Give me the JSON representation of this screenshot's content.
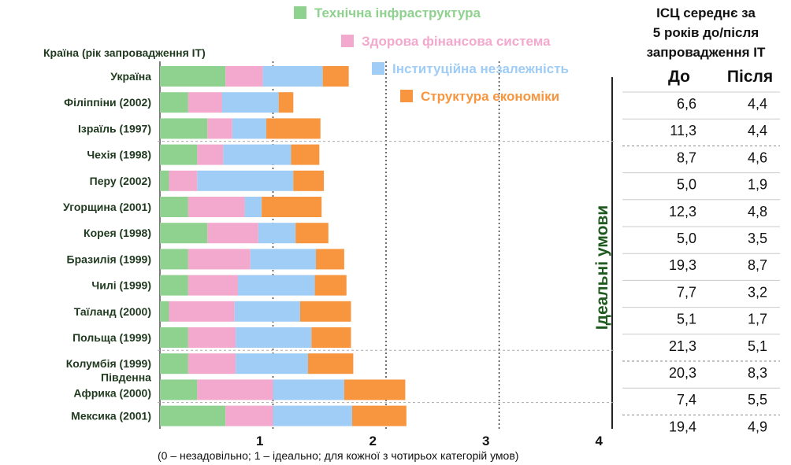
{
  "chart_data": {
    "type": "bar",
    "orientation": "horizontal",
    "stacked": true,
    "ylabel": "Країна (рік запровадження ІТ)",
    "xlabel": "(0 – незадовільно; 1 – ідеально; для кожної з чотирьох категорій умов)",
    "xlim": [
      0,
      4
    ],
    "xticks": [
      "1",
      "2",
      "3",
      "4"
    ],
    "grid": "dotted vertical lines at 1, 2, 3; solid line at 4",
    "legend_position": "top",
    "categories": [
      "Україна",
      "Філіппіни (2002)",
      "Ізраїль (1997)",
      "Чехія (1998)",
      "Перу (2002)",
      "Угорщина (2001)",
      "Корея (1998)",
      "Бразилія (1999)",
      "Чилі (1999)",
      "Таїланд (2000)",
      "Польща (1999)",
      "Колумбія (1999)",
      "Південна Африка (2000)",
      "Мексика (2001)"
    ],
    "series": [
      {
        "name": "Технічна інфраструктура",
        "color": "#8fd18f",
        "values": [
          0.58,
          0.25,
          0.42,
          0.33,
          0.08,
          0.25,
          0.42,
          0.25,
          0.25,
          0.08,
          0.25,
          0.25,
          0.33,
          0.58
        ]
      },
      {
        "name": "Здорова фінансова система",
        "color": "#f3a8cd",
        "values": [
          0.33,
          0.3,
          0.22,
          0.23,
          0.25,
          0.5,
          0.45,
          0.55,
          0.44,
          0.58,
          0.42,
          0.42,
          0.67,
          0.42
        ]
      },
      {
        "name": "Інституційна незалежність",
        "color": "#9fcdf5",
        "values": [
          0.53,
          0.5,
          0.3,
          0.6,
          0.85,
          0.15,
          0.33,
          0.58,
          0.68,
          0.58,
          0.67,
          0.64,
          0.63,
          0.7
        ]
      },
      {
        "name": "Структура економіки",
        "color": "#f7963f",
        "values": [
          0.23,
          0.13,
          0.48,
          0.25,
          0.27,
          0.53,
          0.29,
          0.25,
          0.28,
          0.45,
          0.35,
          0.4,
          0.54,
          0.48
        ]
      }
    ],
    "annotation": "Ідеальні умови"
  },
  "table": {
    "title_lines": [
      "ІСЦ середнє за",
      "5 років до/після",
      "запровадження ІТ"
    ],
    "col_before": "До",
    "col_after": "Після",
    "rows": [
      {
        "before": "6,6",
        "after": "4,4"
      },
      {
        "before": "11,3",
        "after": "4,4"
      },
      {
        "before": "8,7",
        "after": "4,6"
      },
      {
        "before": "5,0",
        "after": "1,9"
      },
      {
        "before": "12,3",
        "after": "4,8"
      },
      {
        "before": "5,0",
        "after": "3,5"
      },
      {
        "before": "19,3",
        "after": "8,7"
      },
      {
        "before": "7,7",
        "after": "3,2"
      },
      {
        "before": "5,1",
        "after": "1,7"
      },
      {
        "before": "21,3",
        "after": "5,1"
      },
      {
        "before": "20,3",
        "after": "8,3"
      },
      {
        "before": "7,4",
        "after": "5,5"
      },
      {
        "before": "19,4",
        "after": "4,9"
      }
    ]
  }
}
